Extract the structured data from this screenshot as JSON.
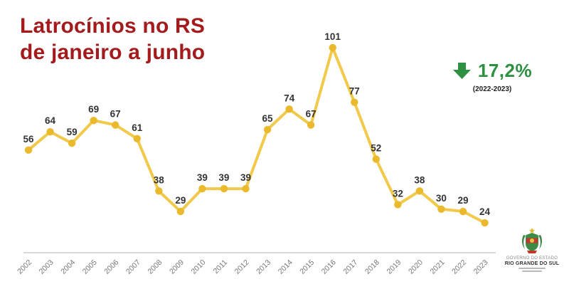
{
  "title": {
    "line1": "Latrocínios no RS",
    "line2": "de janeiro a junho"
  },
  "stat": {
    "value": "17,2%",
    "period": "(2022-2023)",
    "direction": "down",
    "accent_color": "#2E9142"
  },
  "chart_data": {
    "type": "line",
    "title": "Latrocínios no RS de janeiro a junho",
    "categories": [
      "2002",
      "2003",
      "2004",
      "2005",
      "2006",
      "2007",
      "2008",
      "2009",
      "2010",
      "2011",
      "2012",
      "2013",
      "2014",
      "2015",
      "2016",
      "2017",
      "2018",
      "2019",
      "2020",
      "2021",
      "2022",
      "2023"
    ],
    "values": [
      56,
      64,
      59,
      69,
      67,
      61,
      38,
      29,
      39,
      39,
      39,
      65,
      74,
      67,
      101,
      77,
      52,
      32,
      38,
      30,
      29,
      24
    ],
    "xlabel": "",
    "ylabel": "",
    "ylim": [
      0,
      110
    ],
    "grid": false,
    "legend": false,
    "value_labels": true,
    "line_color": "#F1C94B",
    "point_color": "#EBB92C",
    "value_label_color": "#333333",
    "tick_label_color": "#777777",
    "axis_color": "#D9D9D9"
  },
  "logo": {
    "org_line1": "GOVERNO DO ESTADO",
    "org_line2": "RIO GRANDE DO SUL"
  }
}
